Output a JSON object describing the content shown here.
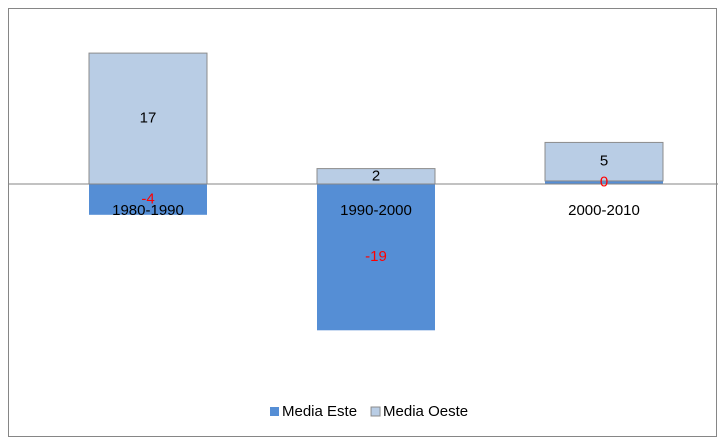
{
  "chart_data": {
    "type": "bar",
    "stacked": true,
    "categories": [
      "1980-1990",
      "1990-2000",
      "2000-2010"
    ],
    "series": [
      {
        "name": "Media Este",
        "color": "#558ed5",
        "label_color": "#ff0000",
        "values": [
          -4,
          -19,
          0.4
        ],
        "value_labels": [
          "-4",
          "-19",
          "0"
        ]
      },
      {
        "name": "Media Oeste",
        "color": "#b9cde5",
        "label_color": "#000000",
        "values": [
          17,
          2,
          5
        ]
      }
    ],
    "ylim": [
      -25,
      20
    ],
    "legend": "bottom"
  }
}
